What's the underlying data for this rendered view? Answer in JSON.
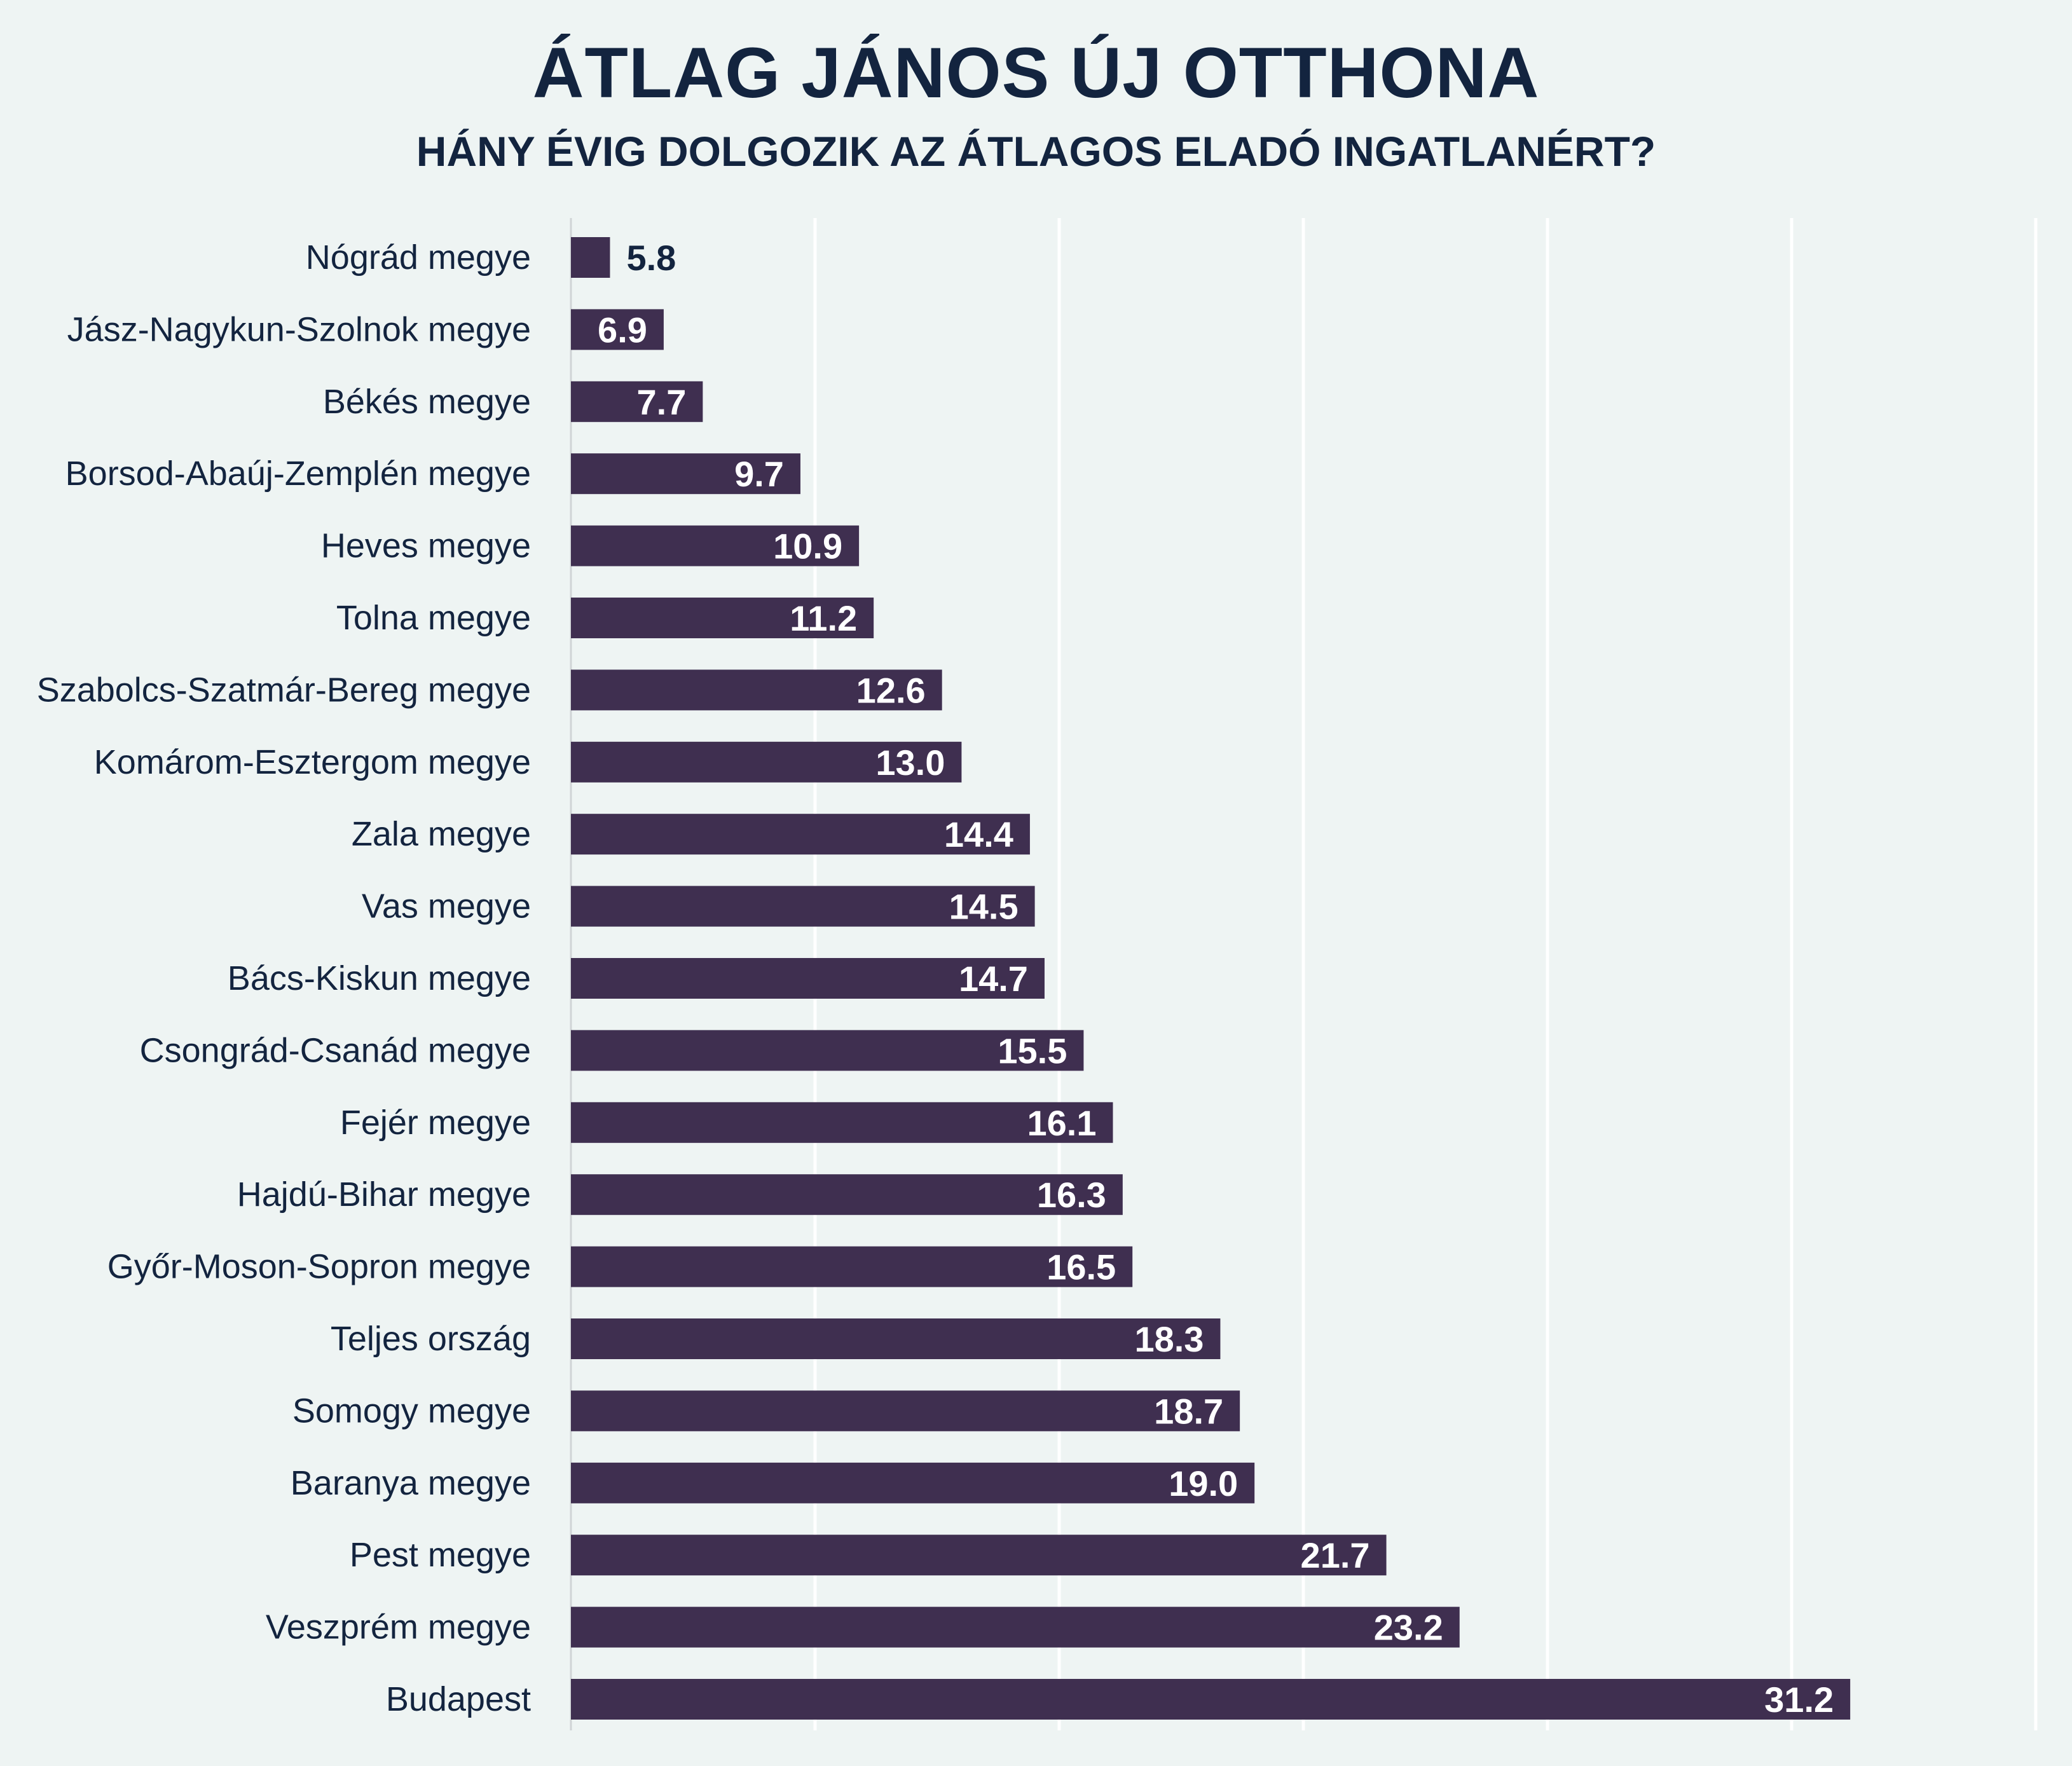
{
  "chart_data": {
    "type": "bar",
    "orientation": "horizontal",
    "title": "ÁTLAG JÁNOS ÚJ OTTHONA",
    "subtitle": "HÁNY ÉVIG DOLGOZIK AZ ÁTLAGOS ELADÓ INGATLANÉRT?",
    "xlabel": "",
    "ylabel": "",
    "xlim": [
      5,
      35
    ],
    "grid_step": 5,
    "grid": true,
    "categories": [
      "Nógrád megye",
      "Jász-Nagykun-Szolnok megye",
      "Békés megye",
      "Borsod-Abaúj-Zemplén megye",
      "Heves megye",
      "Tolna megye",
      "Szabolcs-Szatmár-Bereg megye",
      "Komárom-Esztergom megye",
      "Zala megye",
      "Vas megye",
      "Bács-Kiskun megye",
      "Csongrád-Csanád megye",
      "Fejér megye",
      "Hajdú-Bihar megye",
      "Győr-Moson-Sopron megye",
      "Teljes ország",
      "Somogy megye",
      "Baranya megye",
      "Pest megye",
      "Veszprém megye",
      "Budapest"
    ],
    "values": [
      5.8,
      6.9,
      7.7,
      9.7,
      10.9,
      11.2,
      12.6,
      13.0,
      14.4,
      14.5,
      14.7,
      15.5,
      16.1,
      16.3,
      16.5,
      18.3,
      18.7,
      19.0,
      21.7,
      23.2,
      31.2
    ],
    "value_labels": [
      "5.8",
      "6.9",
      "7.7",
      "9.7",
      "10.9",
      "11.2",
      "12.6",
      "13.0",
      "14.4",
      "14.5",
      "14.7",
      "15.5",
      "16.1",
      "16.3",
      "16.5",
      "18.3",
      "18.7",
      "19.0",
      "21.7",
      "23.2",
      "31.2"
    ],
    "colors": {
      "bar": "#3f2f50",
      "text": "#13243f",
      "background": "#eef4f3",
      "grid": "#ffffff"
    }
  }
}
